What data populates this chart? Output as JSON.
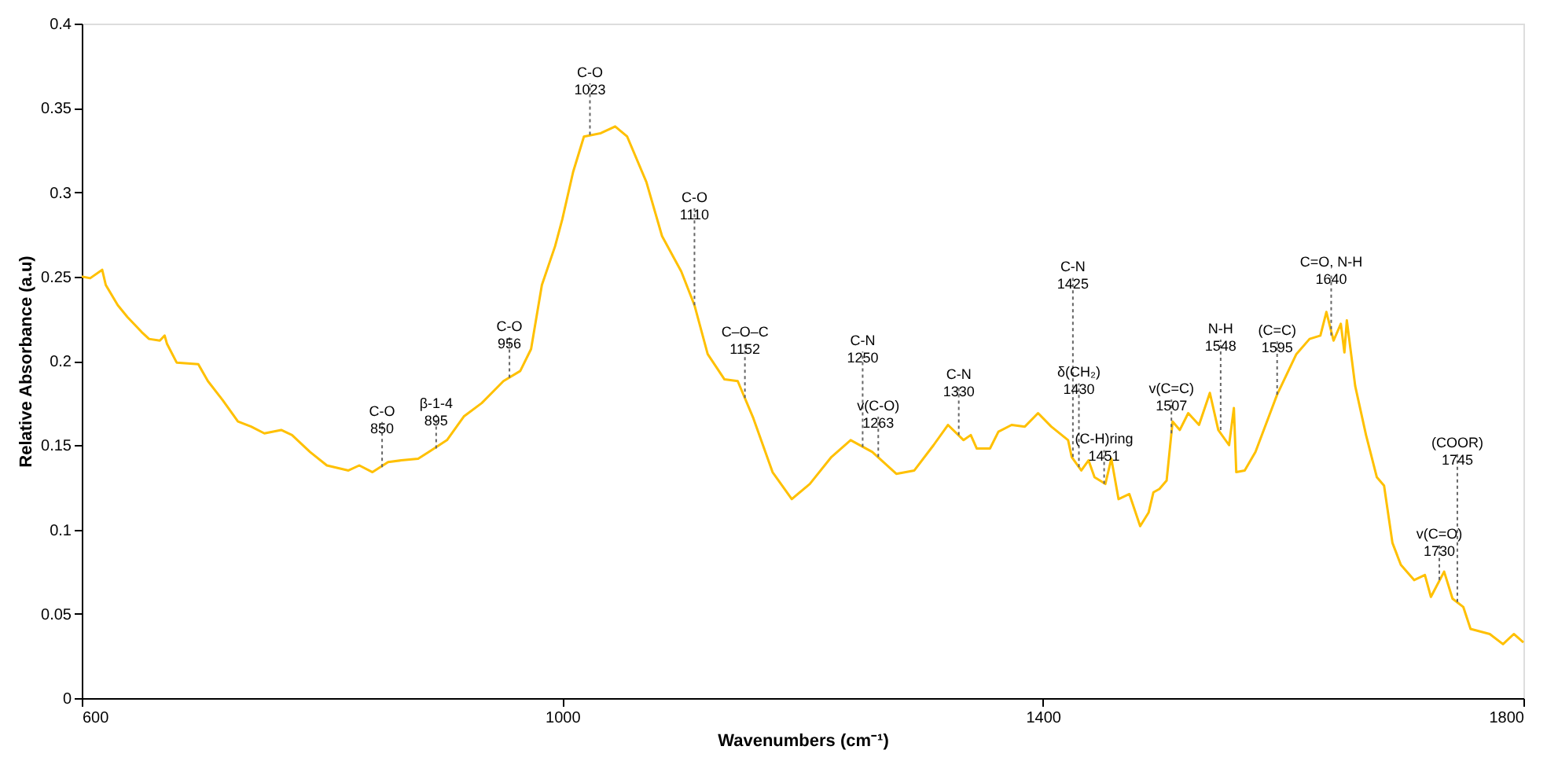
{
  "chart_data": {
    "type": "line",
    "xlabel": "Wavenumbers (cm⁻¹)",
    "ylabel": "Relative Absorbance (a.u)",
    "xlim": [
      600,
      1800
    ],
    "xticks": [
      600,
      1000,
      1400,
      1800
    ],
    "ylim": [
      0,
      0.4
    ],
    "yticks": [
      0,
      0.05,
      0.1,
      0.15,
      0.2,
      0.25,
      0.3,
      0.35,
      0.4
    ],
    "grid": false,
    "marker": "none",
    "line_style": "solid",
    "series": [
      {
        "color": "#ffc000",
        "x": [
          600,
          607,
          617,
          620,
          630,
          638,
          650,
          656,
          665,
          669,
          671,
          679,
          697,
          705,
          717,
          721,
          730,
          741,
          752,
          766,
          775,
          790,
          804,
          822,
          831,
          842,
          855,
          866,
          880,
          889,
          904,
          918,
          933,
          951,
          965,
          974,
          983,
          994,
          1000,
          1009,
          1018,
          1032,
          1044,
          1054,
          1070,
          1083,
          1099,
          1110,
          1121,
          1135,
          1146,
          1159,
          1175,
          1191,
          1206,
          1224,
          1240,
          1258,
          1278,
          1293,
          1309,
          1321,
          1334,
          1340,
          1345,
          1356,
          1363,
          1374,
          1385,
          1396,
          1407,
          1421,
          1424,
          1432,
          1438,
          1443,
          1452,
          1457,
          1463,
          1472,
          1481,
          1488,
          1492,
          1497,
          1503,
          1508,
          1514,
          1521,
          1530,
          1539,
          1546,
          1555,
          1559,
          1561,
          1568,
          1577,
          1595,
          1611,
          1622,
          1631,
          1636,
          1642,
          1648,
          1651,
          1653,
          1660,
          1669,
          1678,
          1684,
          1691,
          1698,
          1709,
          1718,
          1723,
          1734,
          1741,
          1750,
          1756,
          1772,
          1783,
          1792,
          1800
        ],
        "values": [
          0.25,
          0.249,
          0.254,
          0.245,
          0.233,
          0.226,
          0.217,
          0.213,
          0.212,
          0.215,
          0.21,
          0.199,
          0.198,
          0.188,
          0.177,
          0.173,
          0.164,
          0.161,
          0.157,
          0.159,
          0.156,
          0.146,
          0.138,
          0.135,
          0.138,
          0.134,
          0.14,
          0.141,
          0.142,
          0.146,
          0.153,
          0.167,
          0.175,
          0.188,
          0.194,
          0.207,
          0.245,
          0.268,
          0.284,
          0.312,
          0.333,
          0.335,
          0.339,
          0.333,
          0.306,
          0.274,
          0.253,
          0.233,
          0.204,
          0.189,
          0.188,
          0.166,
          0.134,
          0.118,
          0.127,
          0.143,
          0.153,
          0.146,
          0.133,
          0.135,
          0.15,
          0.162,
          0.153,
          0.156,
          0.148,
          0.148,
          0.158,
          0.162,
          0.161,
          0.169,
          0.161,
          0.153,
          0.143,
          0.135,
          0.141,
          0.131,
          0.127,
          0.142,
          0.118,
          0.121,
          0.102,
          0.11,
          0.122,
          0.124,
          0.129,
          0.164,
          0.159,
          0.169,
          0.162,
          0.181,
          0.159,
          0.15,
          0.172,
          0.134,
          0.135,
          0.146,
          0.18,
          0.204,
          0.213,
          0.215,
          0.229,
          0.212,
          0.222,
          0.205,
          0.224,
          0.185,
          0.156,
          0.131,
          0.126,
          0.092,
          0.079,
          0.07,
          0.073,
          0.06,
          0.075,
          0.059,
          0.054,
          0.041,
          0.038,
          0.032,
          0.038,
          0.033
        ]
      }
    ],
    "annotations": [
      {
        "text": "C-O\n850",
        "x": 850,
        "y": 0.137
      },
      {
        "text": "β-1-4\n895",
        "x": 895,
        "y": 0.148
      },
      {
        "text": "C-O\n956",
        "x": 956,
        "y": 0.19
      },
      {
        "text": "C-O\n1023",
        "x": 1023,
        "y": 0.334
      },
      {
        "text": "C-O\n1110",
        "x": 1110,
        "y": 0.233
      },
      {
        "text": "C–O–C\n1152",
        "x": 1152,
        "y": 0.178
      },
      {
        "text": "C-N\n1250",
        "x": 1250,
        "y": 0.149
      },
      {
        "text": "v(C-O)\n1263",
        "x": 1263,
        "y": 0.143
      },
      {
        "text": "C-N\n1330",
        "x": 1330,
        "y": 0.156
      },
      {
        "text": "C-N\n1425",
        "x": 1425,
        "y": 0.143
      },
      {
        "text": "δ(CH₂)\n1430",
        "x": 1430,
        "y": 0.137
      },
      {
        "text": "(C-H)ring\n1451",
        "x": 1451,
        "y": 0.127
      },
      {
        "text": "v(C=C)\n1507",
        "x": 1507,
        "y": 0.157
      },
      {
        "text": "N-H\n1548",
        "x": 1548,
        "y": 0.159
      },
      {
        "text": "(C=C)\n1595",
        "x": 1595,
        "y": 0.18
      },
      {
        "text": "C=O, N-H\n1640",
        "x": 1640,
        "y": 0.215
      },
      {
        "text": "v(C=O)\n1730",
        "x": 1730,
        "y": 0.07
      },
      {
        "text": "(COOR)\n1745",
        "x": 1745,
        "y": 0.057
      }
    ]
  }
}
